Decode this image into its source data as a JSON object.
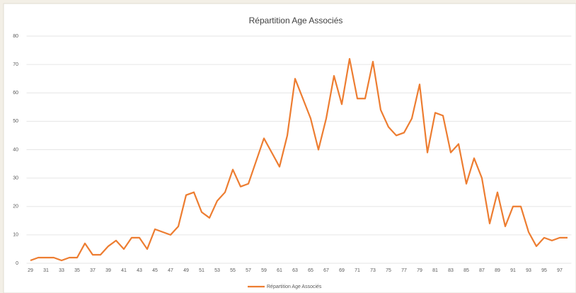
{
  "chart_data": {
    "type": "line",
    "title": "Répartition Age Associés",
    "categories": [
      "29",
      null,
      "31",
      null,
      "33",
      null,
      "35",
      null,
      "37",
      null,
      "39",
      null,
      "41",
      null,
      "43",
      null,
      "45",
      null,
      "47",
      null,
      "49",
      null,
      "51",
      null,
      "53",
      null,
      "55",
      null,
      "57",
      null,
      "59",
      null,
      "61",
      null,
      "63",
      null,
      "65",
      null,
      "67",
      null,
      "69",
      null,
      "71",
      null,
      "73",
      null,
      "75",
      null,
      "77",
      null,
      "79",
      null,
      "81",
      null,
      "83",
      null,
      "85",
      null,
      "87",
      null,
      "89",
      null,
      "91",
      null,
      "93",
      null,
      "95",
      null,
      "97",
      null
    ],
    "series": [
      {
        "name": "Répartition Age Associés",
        "color": "#ed7d31",
        "values": [
          1,
          2,
          2,
          2,
          1,
          2,
          2,
          7,
          3,
          3,
          6,
          8,
          5,
          9,
          9,
          5,
          12,
          11,
          10,
          13,
          24,
          25,
          18,
          16,
          22,
          25,
          33,
          27,
          28,
          36,
          44,
          39,
          34,
          45,
          65,
          58,
          51,
          40,
          51,
          66,
          56,
          72,
          58,
          58,
          71,
          54,
          48,
          45,
          46,
          51,
          63,
          39,
          53,
          52,
          39,
          42,
          28,
          37,
          30,
          14,
          25,
          13,
          20,
          20,
          11,
          6,
          9,
          8,
          9,
          9
        ]
      }
    ],
    "ylim": [
      0,
      80
    ],
    "yticks": [
      0,
      10,
      20,
      30,
      40,
      50,
      60,
      70,
      80
    ],
    "grid": true,
    "legend": "bottom"
  }
}
